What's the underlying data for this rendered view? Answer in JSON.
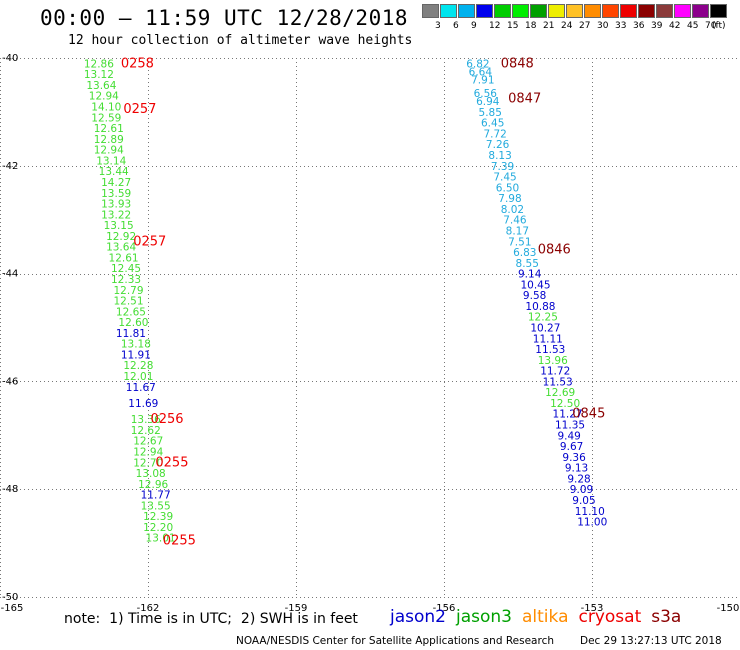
{
  "header": {
    "title": "00:00 – 11:59 UTC 12/28/2018",
    "subtitle": "12 hour collection of altimeter wave heights"
  },
  "legend": {
    "unit": "(ft)",
    "colors": [
      "#808080",
      "#00e5ee",
      "#00b2ee",
      "#0000ee",
      "#00cd00",
      "#00ee00",
      "#00a000",
      "#eeee00",
      "#ffc125",
      "#ff8c00",
      "#ff4500",
      "#ee0000",
      "#8b0000",
      "#8b3a3a",
      "#ff00ff",
      "#8b008b",
      "#000000"
    ],
    "labels": [
      "3",
      "6",
      "9",
      "12",
      "15",
      "18",
      "21",
      "24",
      "27",
      "30",
      "33",
      "36",
      "39",
      "42",
      "45",
      "70"
    ]
  },
  "footer": {
    "note": "note:  1) Time is in UTC;  2) SWH is in feet",
    "satellites": [
      {
        "name": "jason2",
        "color": "#0000cc"
      },
      {
        "name": "jason3",
        "color": "#00a000"
      },
      {
        "name": "altika",
        "color": "#ff8c00"
      },
      {
        "name": "cryosat",
        "color": "#ee0000"
      },
      {
        "name": "s3a",
        "color": "#8b0000"
      }
    ],
    "credit": "NOAA/NESDIS Center for Satellite Applications and Research",
    "timestamp": "Dec 29 13:27:13 UTC 2018"
  },
  "chart_data": {
    "type": "scatter",
    "xlim": [
      -165,
      -150
    ],
    "ylim": [
      -50,
      -40
    ],
    "x_ticks": [
      -165,
      -162,
      -159,
      -156,
      -153,
      -150
    ],
    "x_tick_labels": [
      "-165",
      "-162",
      "-159",
      "-156",
      "-153",
      "-150"
    ],
    "y_ticks": [
      -40,
      -42,
      -44,
      -46,
      -48,
      -50
    ],
    "y_tick_labels": [
      "-40",
      "-42",
      "-44",
      "-46",
      "-48",
      "-50"
    ],
    "series": [
      {
        "satellite": "jason3",
        "color": "#44dd33",
        "points": [
          {
            "x": -163.3,
            "y": -40.1,
            "value": "12.86"
          },
          {
            "x": -163.3,
            "y": -40.3,
            "value": "13.12"
          },
          {
            "x": -163.25,
            "y": -40.5,
            "value": "13.64"
          },
          {
            "x": -163.2,
            "y": -40.7,
            "value": "12.94"
          },
          {
            "x": -163.15,
            "y": -40.9,
            "value": "14.10"
          },
          {
            "x": -163.15,
            "y": -41.1,
            "value": "12.59"
          },
          {
            "x": -163.1,
            "y": -41.3,
            "value": "12.61"
          },
          {
            "x": -163.1,
            "y": -41.5,
            "value": "12.89"
          },
          {
            "x": -163.1,
            "y": -41.7,
            "value": "12.94"
          },
          {
            "x": -163.05,
            "y": -41.9,
            "value": "13.14"
          },
          {
            "x": -163.0,
            "y": -42.1,
            "value": "13.44"
          },
          {
            "x": -162.95,
            "y": -42.3,
            "value": "14.27"
          },
          {
            "x": -162.95,
            "y": -42.5,
            "value": "13.59"
          },
          {
            "x": -162.95,
            "y": -42.7,
            "value": "13.93"
          },
          {
            "x": -162.95,
            "y": -42.9,
            "value": "13.22"
          },
          {
            "x": -162.9,
            "y": -43.1,
            "value": "13.15"
          },
          {
            "x": -162.85,
            "y": -43.3,
            "value": "12.92"
          },
          {
            "x": -162.85,
            "y": -43.5,
            "value": "13.64"
          },
          {
            "x": -162.8,
            "y": -43.7,
            "value": "12.61"
          },
          {
            "x": -162.75,
            "y": -43.9,
            "value": "12.45"
          },
          {
            "x": -162.75,
            "y": -44.1,
            "value": "12.33"
          },
          {
            "x": -162.7,
            "y": -44.3,
            "value": "12.79"
          },
          {
            "x": -162.7,
            "y": -44.5,
            "value": "12.51"
          },
          {
            "x": -162.65,
            "y": -44.7,
            "value": "12.65"
          },
          {
            "x": -162.6,
            "y": -44.9,
            "value": "12.60"
          },
          {
            "x": -162.55,
            "y": -45.3,
            "value": "13.18"
          },
          {
            "x": -162.5,
            "y": -45.7,
            "value": "12.28"
          },
          {
            "x": -162.5,
            "y": -45.9,
            "value": "12.01"
          },
          {
            "x": -162.35,
            "y": -46.7,
            "value": "13.36"
          },
          {
            "x": -162.35,
            "y": -46.9,
            "value": "12.62"
          },
          {
            "x": -162.3,
            "y": -47.1,
            "value": "12.67"
          },
          {
            "x": -162.3,
            "y": -47.3,
            "value": "12.94"
          },
          {
            "x": -162.3,
            "y": -47.5,
            "value": "12.70"
          },
          {
            "x": -162.25,
            "y": -47.7,
            "value": "13.08"
          },
          {
            "x": -162.2,
            "y": -47.9,
            "value": "12.96"
          },
          {
            "x": -162.15,
            "y": -48.3,
            "value": "13.55"
          },
          {
            "x": -162.1,
            "y": -48.5,
            "value": "12.39"
          },
          {
            "x": -162.1,
            "y": -48.7,
            "value": "12.20"
          },
          {
            "x": -162.05,
            "y": -48.9,
            "value": "13.01"
          }
        ]
      },
      {
        "satellite": "jason2",
        "color": "#0000cc",
        "points": [
          {
            "x": -162.65,
            "y": -45.1,
            "value": "11.81"
          },
          {
            "x": -162.55,
            "y": -45.5,
            "value": "11.91"
          },
          {
            "x": -162.45,
            "y": -46.1,
            "value": "11.67"
          },
          {
            "x": -162.4,
            "y": -46.4,
            "value": "11.69"
          },
          {
            "x": -162.15,
            "y": -48.1,
            "value": "11.77"
          }
        ]
      },
      {
        "satellite": "cryosat",
        "color": "#ee0000",
        "points": [
          {
            "x": -162.55,
            "y": -40.1,
            "value": "0258"
          },
          {
            "x": -162.5,
            "y": -40.95,
            "value": "0257"
          },
          {
            "x": -162.3,
            "y": -43.4,
            "value": "0257"
          },
          {
            "x": -161.95,
            "y": -46.7,
            "value": "0256"
          },
          {
            "x": -161.85,
            "y": -47.5,
            "value": "0255"
          },
          {
            "x": -161.7,
            "y": -48.95,
            "value": "0255"
          }
        ]
      },
      {
        "satellite": "jason3_alt",
        "color": "#22aadd",
        "points": [
          {
            "x": -155.55,
            "y": -40.1,
            "value": "6.82"
          },
          {
            "x": -155.5,
            "y": -40.25,
            "value": "6.64"
          },
          {
            "x": -155.45,
            "y": -40.4,
            "value": "7.91"
          },
          {
            "x": -155.4,
            "y": -40.65,
            "value": "6.56"
          },
          {
            "x": -155.35,
            "y": -40.8,
            "value": "6.94"
          },
          {
            "x": -155.3,
            "y": -41.0,
            "value": "5.85"
          },
          {
            "x": -155.25,
            "y": -41.2,
            "value": "6.45"
          },
          {
            "x": -155.2,
            "y": -41.4,
            "value": "7.72"
          },
          {
            "x": -155.15,
            "y": -41.6,
            "value": "7.26"
          },
          {
            "x": -155.1,
            "y": -41.8,
            "value": "8.13"
          },
          {
            "x": -155.05,
            "y": -42.0,
            "value": "7.39"
          },
          {
            "x": -155.0,
            "y": -42.2,
            "value": "7.45"
          },
          {
            "x": -154.95,
            "y": -42.4,
            "value": "6.50"
          },
          {
            "x": -154.9,
            "y": -42.6,
            "value": "7.98"
          },
          {
            "x": -154.85,
            "y": -42.8,
            "value": "8.02"
          },
          {
            "x": -154.8,
            "y": -43.0,
            "value": "7.46"
          },
          {
            "x": -154.75,
            "y": -43.2,
            "value": "8.17"
          },
          {
            "x": -154.7,
            "y": -43.4,
            "value": "7.51"
          },
          {
            "x": -154.6,
            "y": -43.6,
            "value": "6.83"
          },
          {
            "x": -154.55,
            "y": -43.8,
            "value": "8.55"
          }
        ]
      },
      {
        "satellite": "jason2_b",
        "color": "#0000cc",
        "points": [
          {
            "x": -154.5,
            "y": -44.0,
            "value": "9.14"
          },
          {
            "x": -154.45,
            "y": -44.2,
            "value": "10.45"
          },
          {
            "x": -154.4,
            "y": -44.4,
            "value": "9.58"
          },
          {
            "x": -154.35,
            "y": -44.6,
            "value": "10.88"
          },
          {
            "x": -154.25,
            "y": -45.0,
            "value": "10.27"
          },
          {
            "x": -154.2,
            "y": -45.2,
            "value": "11.11"
          },
          {
            "x": -154.15,
            "y": -45.4,
            "value": "11.53"
          },
          {
            "x": -154.05,
            "y": -45.8,
            "value": "11.72"
          },
          {
            "x": -154.0,
            "y": -46.0,
            "value": "11.53"
          },
          {
            "x": -153.8,
            "y": -46.6,
            "value": "11.27"
          },
          {
            "x": -153.75,
            "y": -46.8,
            "value": "11.35"
          },
          {
            "x": -153.7,
            "y": -47.0,
            "value": "9.49"
          },
          {
            "x": -153.65,
            "y": -47.2,
            "value": "9.67"
          },
          {
            "x": -153.6,
            "y": -47.4,
            "value": "9.36"
          },
          {
            "x": -153.55,
            "y": -47.6,
            "value": "9.13"
          },
          {
            "x": -153.5,
            "y": -47.8,
            "value": "9.28"
          },
          {
            "x": -153.45,
            "y": -48.0,
            "value": "9.09"
          },
          {
            "x": -153.4,
            "y": -48.2,
            "value": "9.05"
          },
          {
            "x": -153.35,
            "y": -48.4,
            "value": "11.10"
          },
          {
            "x": -153.3,
            "y": -48.6,
            "value": "11.00"
          }
        ]
      },
      {
        "satellite": "jason3_b",
        "color": "#44dd33",
        "points": [
          {
            "x": -154.3,
            "y": -44.8,
            "value": "12.25"
          },
          {
            "x": -154.1,
            "y": -45.6,
            "value": "13.96"
          },
          {
            "x": -153.95,
            "y": -46.2,
            "value": "12.69"
          },
          {
            "x": -153.85,
            "y": -46.4,
            "value": "12.50"
          }
        ]
      },
      {
        "satellite": "s3a",
        "color": "#8b0000",
        "points": [
          {
            "x": -154.85,
            "y": -40.1,
            "value": "0848"
          },
          {
            "x": -154.7,
            "y": -40.75,
            "value": "0847"
          },
          {
            "x": -154.1,
            "y": -43.55,
            "value": "0846"
          },
          {
            "x": -153.4,
            "y": -46.6,
            "value": "0845"
          }
        ]
      }
    ]
  }
}
